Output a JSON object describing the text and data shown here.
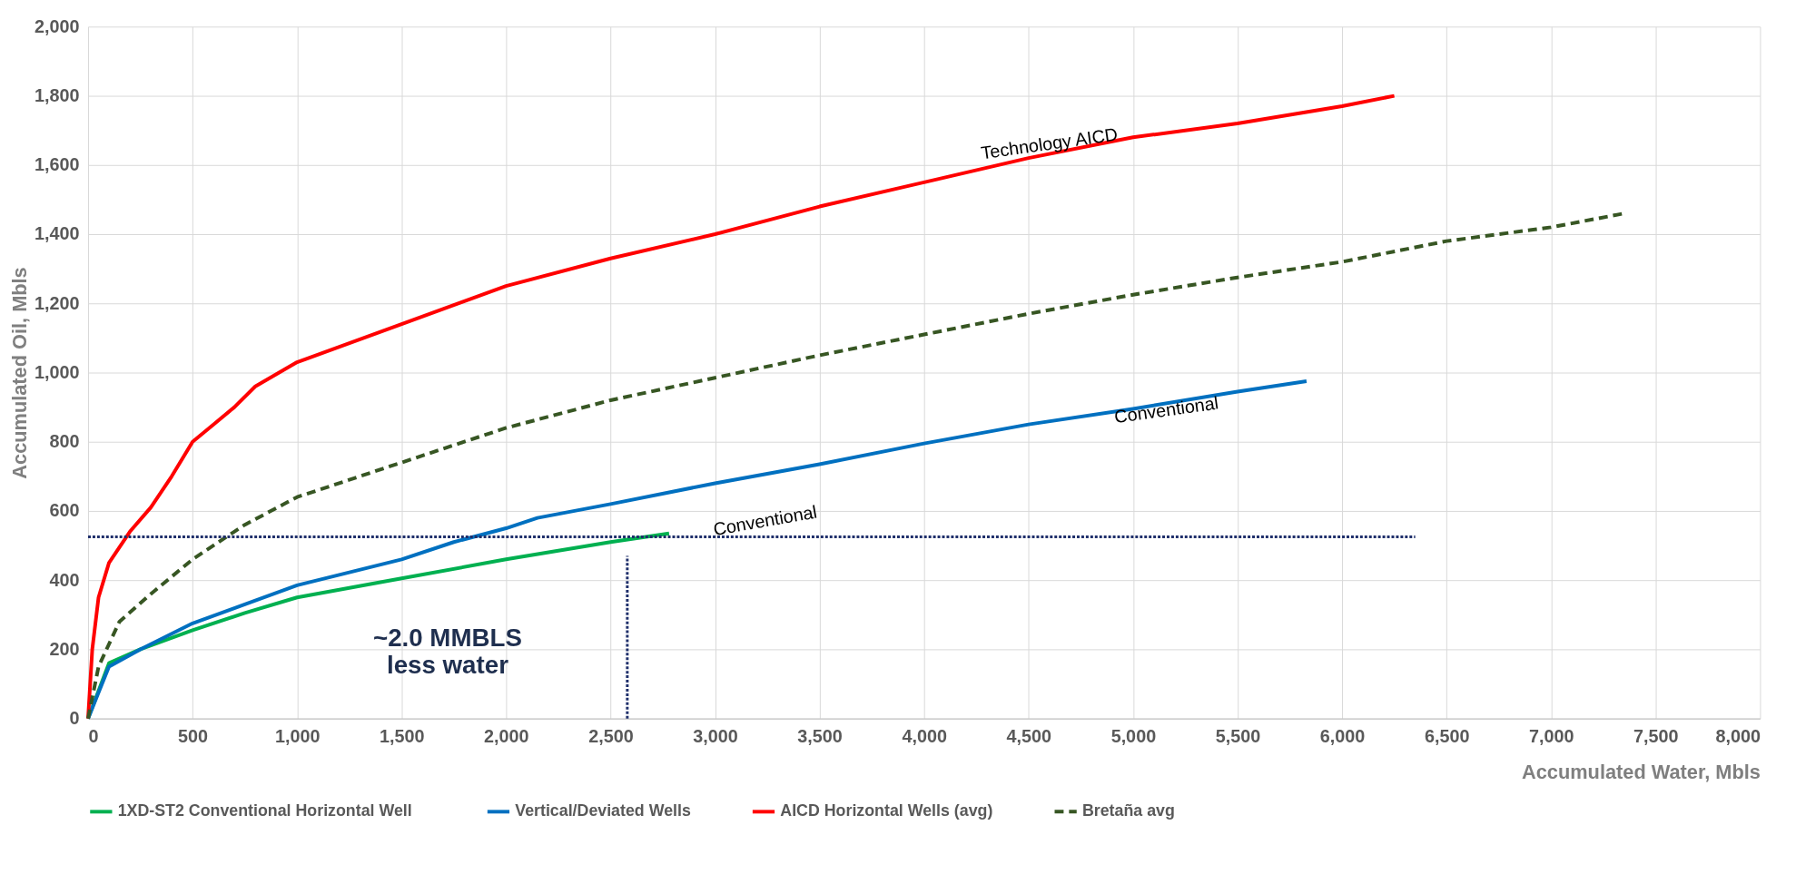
{
  "chart_data": {
    "type": "line",
    "xlabel": "Accumulated Water, Mbls",
    "ylabel": "Accumulated Oil, Mbls",
    "xlim": [
      0,
      8000
    ],
    "xticks": [
      {
        "value": 0,
        "label": "0"
      },
      {
        "value": 500,
        "label": "500"
      },
      {
        "value": 1000,
        "label": "1,000"
      },
      {
        "value": 1500,
        "label": "1,500"
      },
      {
        "value": 2000,
        "label": "2,000"
      },
      {
        "value": 2500,
        "label": "2,500"
      },
      {
        "value": 3000,
        "label": "3,000"
      },
      {
        "value": 3500,
        "label": "3,500"
      },
      {
        "value": 4000,
        "label": "4,000"
      },
      {
        "value": 4500,
        "label": "4,500"
      },
      {
        "value": 5000,
        "label": "5,000"
      },
      {
        "value": 5500,
        "label": "5,500"
      },
      {
        "value": 6000,
        "label": "6,000"
      },
      {
        "value": 6500,
        "label": "6,500"
      },
      {
        "value": 7000,
        "label": "7,000"
      },
      {
        "value": 7500,
        "label": "7,500"
      },
      {
        "value": 8000,
        "label": "8,000"
      }
    ],
    "ylim": [
      0,
      2000
    ],
    "yticks": [
      {
        "value": 0,
        "label": "0"
      },
      {
        "value": 200,
        "label": "200"
      },
      {
        "value": 400,
        "label": "400"
      },
      {
        "value": 600,
        "label": "600"
      },
      {
        "value": 800,
        "label": "800"
      },
      {
        "value": 1000,
        "label": "1,000"
      },
      {
        "value": 1200,
        "label": "1,200"
      },
      {
        "value": 1400,
        "label": "1,400"
      },
      {
        "value": 1600,
        "label": "1,600"
      },
      {
        "value": 1800,
        "label": "1,800"
      },
      {
        "value": 2000,
        "label": "2,000"
      }
    ],
    "grid": true,
    "legend": "bottom",
    "marker": "none",
    "series": [
      {
        "name": "1XD-ST2    Conventional Horizontal Well",
        "color": "#00b050",
        "line_style": "solid",
        "x": [
          0,
          100,
          250,
          500,
          750,
          1000,
          1500,
          2000,
          2500,
          2780
        ],
        "values": [
          0,
          160,
          200,
          255,
          305,
          350,
          405,
          460,
          510,
          535
        ]
      },
      {
        "name": "Vertical/Deviated Wells",
        "color": "#0070c0",
        "line_style": "solid",
        "x": [
          0,
          100,
          250,
          500,
          750,
          1000,
          1500,
          1750,
          2000,
          2150,
          2500,
          3000,
          3500,
          4000,
          4500,
          5000,
          5500,
          5830
        ],
        "values": [
          0,
          150,
          200,
          275,
          330,
          385,
          460,
          510,
          550,
          580,
          620,
          680,
          735,
          795,
          850,
          895,
          945,
          975
        ]
      },
      {
        "name": "AICD Horizontal Wells (avg)",
        "color": "#ff0000",
        "line_style": "solid",
        "x": [
          0,
          20,
          50,
          100,
          200,
          300,
          400,
          500,
          600,
          700,
          800,
          1000,
          1500,
          2000,
          2500,
          3000,
          3500,
          4000,
          4500,
          5000,
          5500,
          6000,
          6250
        ],
        "values": [
          0,
          200,
          350,
          450,
          540,
          610,
          700,
          800,
          850,
          900,
          960,
          1030,
          1140,
          1250,
          1330,
          1400,
          1480,
          1550,
          1620,
          1680,
          1720,
          1770,
          1800
        ]
      },
      {
        "name": "Bretaña avg",
        "color": "#375623",
        "line_style": "dashed",
        "x": [
          0,
          50,
          150,
          300,
          500,
          750,
          1000,
          1500,
          2000,
          2500,
          3000,
          3500,
          4000,
          4500,
          5000,
          5500,
          6000,
          6500,
          7000,
          7350
        ],
        "values": [
          0,
          150,
          280,
          360,
          460,
          560,
          640,
          740,
          840,
          920,
          985,
          1050,
          1110,
          1170,
          1225,
          1275,
          1320,
          1380,
          1420,
          1460
        ]
      },
      {
        "color": "#1f2f6b",
        "line_style": "dotted",
        "x": [
          0,
          6350
        ],
        "values": [
          525,
          525
        ]
      },
      {
        "color": "#1f2f6b",
        "line_style": "dotted",
        "x": [
          2580,
          2580
        ],
        "values": [
          0,
          470
        ]
      }
    ],
    "annotations": [
      "Technology AICD",
      "Conventional",
      "Conventional",
      "~2.0 MMBLS\nless water"
    ]
  }
}
